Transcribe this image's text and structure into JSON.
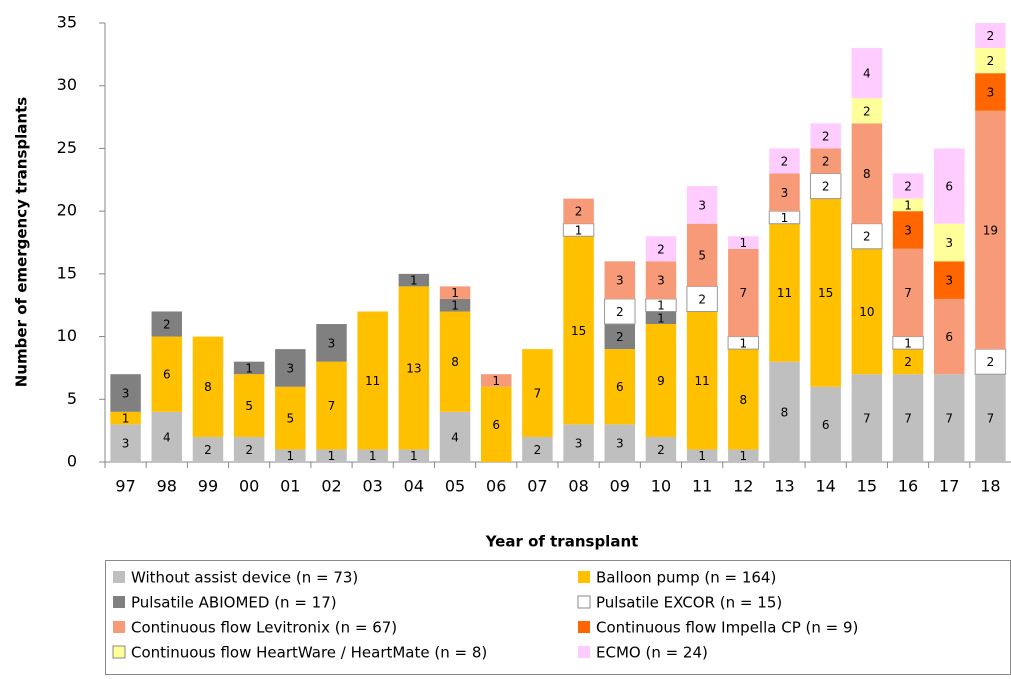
{
  "chart_data": {
    "type": "stacked-bar",
    "y_label": "Number of emergency transplants",
    "x_label": "Year of transplant",
    "categories": [
      "97",
      "98",
      "99",
      "00",
      "01",
      "02",
      "03",
      "04",
      "05",
      "06",
      "07",
      "08",
      "09",
      "10",
      "11",
      "12",
      "13",
      "14",
      "15",
      "16",
      "17",
      "18"
    ],
    "ylim": [
      0,
      35
    ],
    "yticks": [
      0,
      5,
      10,
      15,
      20,
      25,
      30,
      35
    ],
    "grid": false,
    "series": [
      {
        "name": "Without assist device (n = 73)",
        "color": "#bfbfbf",
        "values": [
          3,
          4,
          2,
          2,
          1,
          1,
          1,
          1,
          4,
          null,
          2,
          3,
          3,
          2,
          1,
          1,
          8,
          6,
          7,
          7,
          7,
          7
        ]
      },
      {
        "name": "Balloon pump (n = 164)",
        "color": "#ffc000",
        "values": [
          1,
          6,
          8,
          5,
          5,
          7,
          11,
          13,
          8,
          6,
          7,
          15,
          6,
          9,
          11,
          8,
          11,
          15,
          10,
          2,
          null,
          null
        ]
      },
      {
        "name": "Pulsatile ABIOMED (n = 17)",
        "color": "#808080",
        "values": [
          3,
          2,
          null,
          1,
          3,
          3,
          null,
          1,
          1,
          null,
          null,
          null,
          2,
          1,
          null,
          null,
          null,
          null,
          null,
          null,
          null,
          null
        ]
      },
      {
        "name": "Pulsatile EXCOR (n = 15)",
        "color": "#ffffff",
        "values": [
          null,
          null,
          null,
          null,
          null,
          null,
          null,
          null,
          null,
          null,
          null,
          1,
          2,
          1,
          2,
          1,
          1,
          2,
          2,
          1,
          null,
          2
        ]
      },
      {
        "name": "Continuous flow Levitronix (n = 67)",
        "color": "#f79a78",
        "values": [
          null,
          null,
          null,
          null,
          null,
          null,
          null,
          null,
          1,
          1,
          null,
          2,
          3,
          3,
          5,
          7,
          3,
          2,
          8,
          7,
          6,
          19
        ]
      },
      {
        "name": "Continuous flow Impella CP (n = 9)",
        "color": "#ff6600",
        "values": [
          null,
          null,
          null,
          null,
          null,
          null,
          null,
          null,
          null,
          null,
          null,
          null,
          null,
          null,
          null,
          null,
          null,
          null,
          null,
          3,
          3,
          3
        ]
      },
      {
        "name": "Continuous flow HeartWare / HeartMate (n = 8)",
        "color": "#ffff99",
        "values": [
          null,
          null,
          null,
          null,
          null,
          null,
          null,
          null,
          null,
          null,
          null,
          null,
          null,
          null,
          null,
          null,
          null,
          null,
          2,
          1,
          3,
          2
        ]
      },
      {
        "name": "ECMO (n = 24)",
        "color": "#ffccff",
        "values": [
          null,
          null,
          null,
          null,
          null,
          null,
          null,
          null,
          null,
          null,
          null,
          null,
          null,
          2,
          3,
          1,
          2,
          2,
          4,
          2,
          6,
          2
        ]
      }
    ]
  }
}
